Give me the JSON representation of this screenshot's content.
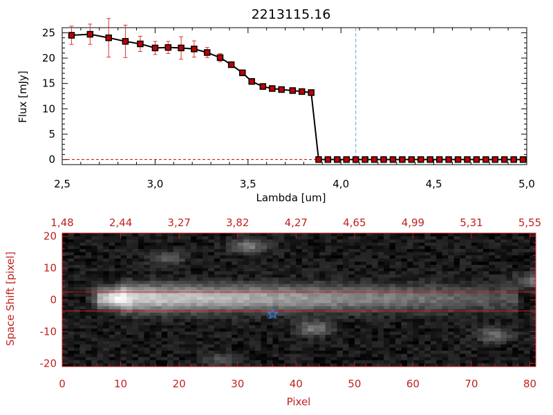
{
  "chart_data": [
    {
      "type": "line",
      "title": "2213115.16",
      "xlabel": "Lambda [um]",
      "ylabel": "Flux [mJy]",
      "xlim": [
        2.5,
        5.0
      ],
      "ylim": [
        -1,
        26
      ],
      "x_ticks": [
        "2.5",
        "3.0",
        "3.5",
        "4.0",
        "4.5",
        "5.0"
      ],
      "y_ticks": [
        "0",
        "5",
        "10",
        "15",
        "20",
        "25"
      ],
      "vertical_line_x": 4.08,
      "colors": {
        "line": "#000000",
        "marker": "#c00000",
        "errorbar": "#e03030",
        "vline": "#5aa0e0"
      },
      "series": [
        {
          "x": [
            2.55,
            2.65,
            2.75,
            2.84,
            2.92,
            3.0,
            3.07,
            3.14,
            3.21,
            3.28,
            3.35,
            3.41,
            3.47,
            3.52,
            3.58,
            3.63,
            3.68,
            3.74,
            3.79,
            3.84,
            3.88,
            3.93,
            3.98,
            4.03,
            4.08,
            4.13,
            4.18,
            4.23,
            4.28,
            4.33,
            4.38,
            4.43,
            4.48,
            4.53,
            4.58,
            4.63,
            4.68,
            4.73,
            4.78,
            4.83,
            4.88,
            4.93,
            4.98
          ],
          "y": [
            24.5,
            24.7,
            24.0,
            23.3,
            22.8,
            22.0,
            22.1,
            22.0,
            21.8,
            21.1,
            20.1,
            18.7,
            17.1,
            15.4,
            14.4,
            14.0,
            13.8,
            13.6,
            13.4,
            13.2,
            0,
            0,
            0,
            0,
            0,
            0,
            0,
            0,
            0,
            0,
            0,
            0,
            0,
            0,
            0,
            0,
            0,
            0,
            0,
            0,
            0,
            0,
            0
          ],
          "yerr": [
            1.8,
            2.0,
            3.8,
            3.2,
            1.5,
            1.3,
            1.2,
            2.2,
            1.6,
            1.0,
            0.8,
            0.5,
            0.3,
            0.3,
            0.2,
            0.2,
            0.2,
            0.2,
            0.2,
            0.2,
            0,
            0,
            0,
            0,
            0,
            0,
            0,
            0,
            0,
            0,
            0,
            0,
            0,
            0,
            0,
            0,
            0,
            0,
            0,
            0,
            0,
            0,
            0
          ]
        }
      ]
    },
    {
      "type": "heatmap",
      "xlabel": "Pixel",
      "ylabel": "Space Shift [pixel]",
      "xlim": [
        0,
        81
      ],
      "ylim": [
        -21,
        21
      ],
      "x_ticks": [
        "0",
        "10",
        "20",
        "30",
        "40",
        "50",
        "60",
        "70",
        "80"
      ],
      "y_ticks": [
        "-20",
        "-10",
        "0",
        "10",
        "20"
      ],
      "top_axis_labels": [
        "1.48",
        "2.44",
        "3.27",
        "3.82",
        "4.27",
        "4.65",
        "4.99",
        "5.31",
        "5.55"
      ],
      "horizontal_lines_y": [
        2.5,
        -3.5
      ],
      "star_marker": {
        "x": 36,
        "y": -4.5
      },
      "colors": {
        "axes": "#c02020",
        "star": "#3080e0",
        "background": "#000000"
      },
      "trace": {
        "peak_x": 10,
        "peak_y": 0.5,
        "length_to_x": 70
      },
      "blobs": [
        {
          "x": 32,
          "y": 17,
          "level": 0.35
        },
        {
          "x": 18,
          "y": 13,
          "level": 0.2
        },
        {
          "x": 43,
          "y": -9,
          "level": 0.35
        },
        {
          "x": 74,
          "y": -11,
          "level": 0.3
        },
        {
          "x": 81,
          "y": 6,
          "level": 0.35
        },
        {
          "x": 27,
          "y": -19,
          "level": 0.18
        }
      ]
    }
  ]
}
